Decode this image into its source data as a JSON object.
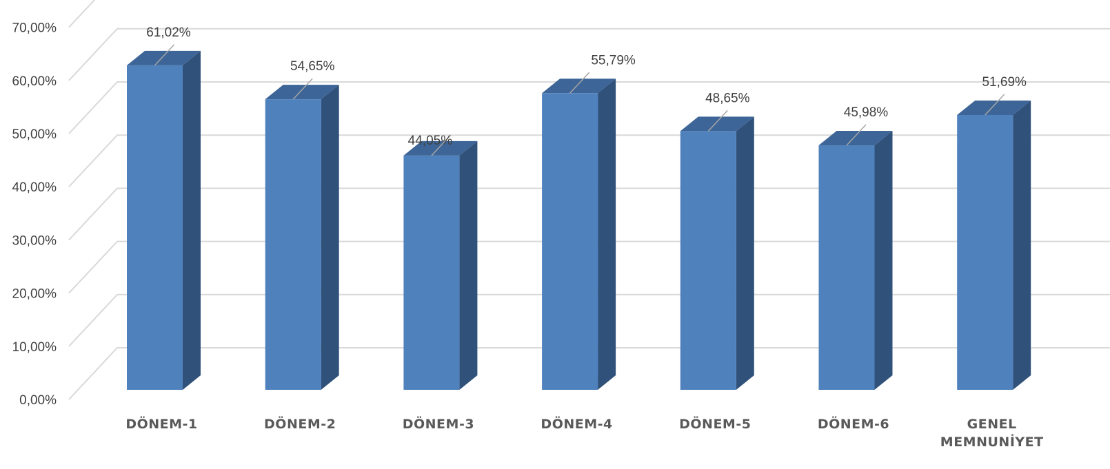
{
  "chart_data": {
    "type": "bar",
    "style": "3d-column",
    "categories": [
      "DÖNEM-1",
      "DÖNEM-2",
      "DÖNEM-3",
      "DÖNEM-4",
      "DÖNEM-5",
      "DÖNEM-6",
      "GENEL MEMNUNİYET"
    ],
    "values": [
      61.02,
      54.65,
      44.05,
      55.79,
      48.65,
      45.98,
      51.69
    ],
    "data_labels": [
      "61,02%",
      "54,65%",
      "44,05%",
      "55,79%",
      "48,65%",
      "45,98%",
      "51,69%"
    ],
    "y_ticks": [
      "0,00%",
      "10,00%",
      "20,00%",
      "30,00%",
      "40,00%",
      "50,00%",
      "60,00%",
      "70,00%"
    ],
    "ylim": [
      0,
      70
    ],
    "grid": true,
    "legend": "none",
    "colors": {
      "front": "#4f81bd",
      "side": "#30527a",
      "top": "#3d6597"
    }
  }
}
